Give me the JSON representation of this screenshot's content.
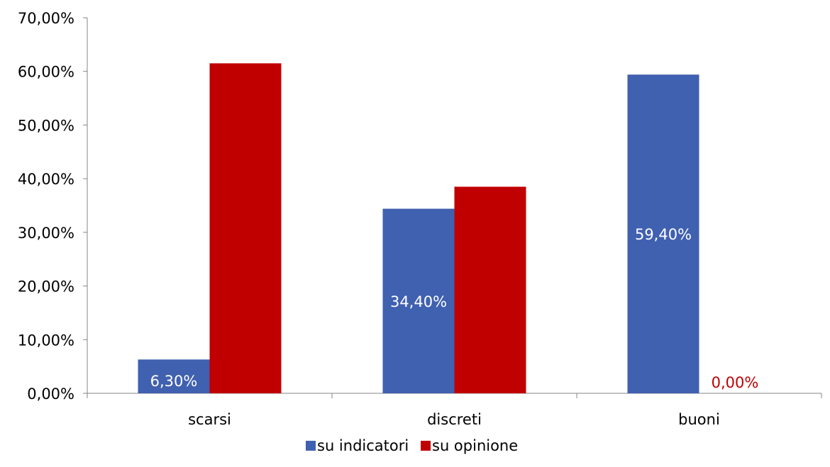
{
  "chart_data": {
    "type": "bar",
    "categories": [
      "scarsi",
      "discreti",
      "buoni"
    ],
    "series": [
      {
        "name": "su indicatori",
        "values": [
          6.3,
          34.4,
          59.4
        ],
        "data_labels": [
          "6,30%",
          "34,40%",
          "59,40%"
        ],
        "color": "#4060B0",
        "label_color": "#ffffff"
      },
      {
        "name": "su opinione",
        "values": [
          61.5,
          38.5,
          0.0
        ],
        "data_labels": [
          null,
          null,
          "0,00%"
        ],
        "color": "#C00000",
        "label_color": "#C00000"
      }
    ],
    "ylim": [
      0,
      70
    ],
    "yticks": [
      0,
      10,
      20,
      30,
      40,
      50,
      60,
      70
    ],
    "ytick_labels": [
      "0,00%",
      "10,00%",
      "20,00%",
      "30,00%",
      "40,00%",
      "50,00%",
      "60,00%",
      "70,00%"
    ],
    "grid": false,
    "legend_position": "bottom",
    "axis_color": "#868686",
    "text_color": "#000000"
  }
}
